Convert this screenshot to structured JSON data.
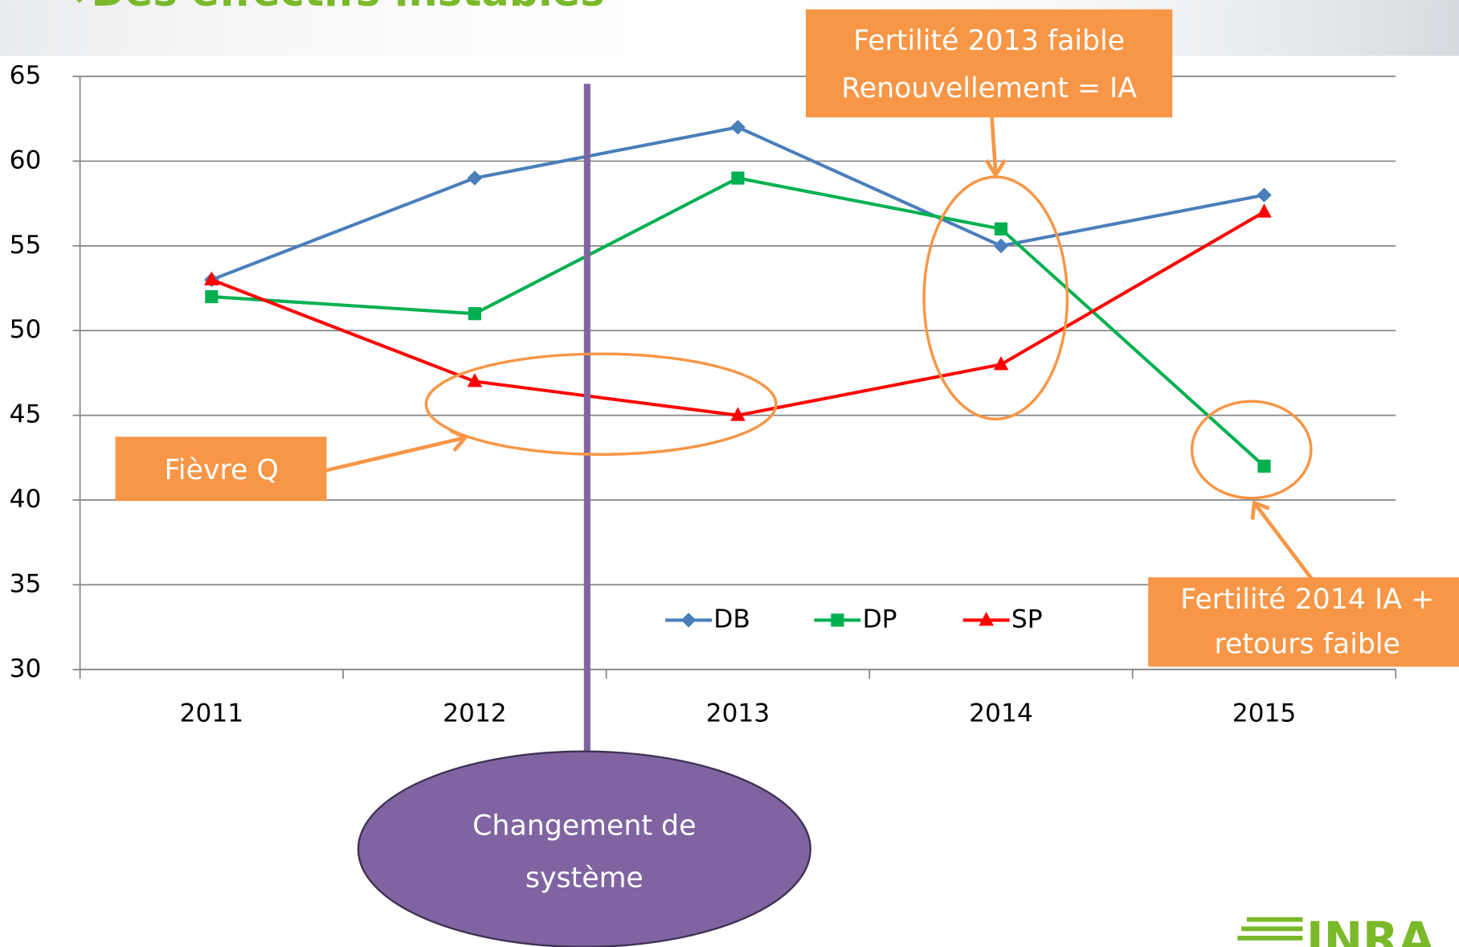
{
  "chart_data": {
    "type": "line",
    "title": "Des effectifs instables",
    "categories": [
      "2011",
      "2012",
      "2013",
      "2014",
      "2015"
    ],
    "series": [
      {
        "name": "DB",
        "color": "#4a7ebb",
        "values": [
          53,
          59,
          62,
          55,
          58
        ]
      },
      {
        "name": "DP",
        "color": "#00b050",
        "values": [
          52,
          51,
          59,
          56,
          42
        ]
      },
      {
        "name": "SP",
        "color": "#ff0000",
        "values": [
          53,
          47,
          45,
          48,
          57
        ]
      }
    ],
    "ylim": [
      30,
      65
    ],
    "yticks": [
      30,
      35,
      40,
      45,
      50,
      55,
      60,
      65
    ],
    "grid": true,
    "annotations": {
      "fertility_2013": [
        "Fertilité 2013 faible",
        "Renouvellement = IA"
      ],
      "q_fever": [
        "Fièvre Q"
      ],
      "fertility_2014": [
        "Fertilité 2014 IA +",
        "retours faible"
      ],
      "system_change": [
        "Changement de",
        "système"
      ]
    },
    "logo": "INRA"
  }
}
